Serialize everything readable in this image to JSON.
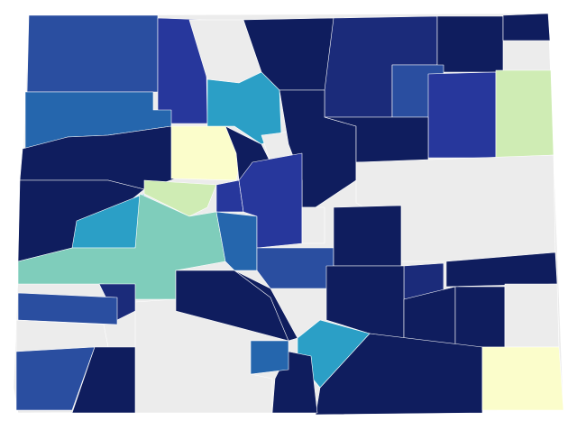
{
  "map": {
    "colors": [
      "#ececec",
      "#0f1d5e",
      "#1b2b7a",
      "#27379c",
      "#2a4ea0",
      "#2566ad",
      "#2b9fc6",
      "#7fcdbb",
      "#cfecb4",
      "#fbfdcb"
    ]
  }
}
